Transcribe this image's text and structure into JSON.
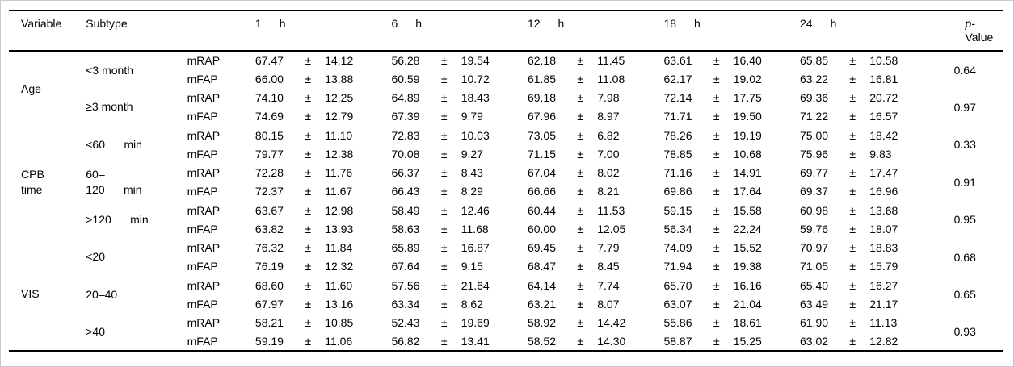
{
  "page": {
    "background": "#ffffff",
    "frame_border_color": "#c9c9c9",
    "rule_color": "#000000"
  },
  "table": {
    "headers": {
      "variable": "Variable",
      "subtype": "Subtype",
      "p_line1": "p-",
      "p_line2": "Value"
    },
    "time_headers": [
      {
        "num": "1",
        "unit": "h"
      },
      {
        "num": "6",
        "unit": "h"
      },
      {
        "num": "12",
        "unit": "h"
      },
      {
        "num": "18",
        "unit": "h"
      },
      {
        "num": "24",
        "unit": "h"
      }
    ],
    "plus_minus": "±",
    "sections": [
      {
        "variable": "Age",
        "groups": [
          {
            "subtype": "<3 month",
            "p": "0.64",
            "rows": [
              {
                "measure": "mRAP",
                "cells": [
                  [
                    "67.47",
                    "14.12"
                  ],
                  [
                    "56.28",
                    "19.54"
                  ],
                  [
                    "62.18",
                    "11.45"
                  ],
                  [
                    "63.61",
                    "16.40"
                  ],
                  [
                    "65.85",
                    "10.58"
                  ]
                ]
              },
              {
                "measure": "mFAP",
                "cells": [
                  [
                    "66.00",
                    "13.88"
                  ],
                  [
                    "60.59",
                    "10.72"
                  ],
                  [
                    "61.85",
                    "11.08"
                  ],
                  [
                    "62.17",
                    "19.02"
                  ],
                  [
                    "63.22",
                    "16.81"
                  ]
                ]
              }
            ]
          },
          {
            "subtype": "≥3 month",
            "p": "0.97",
            "rows": [
              {
                "measure": "mRAP",
                "cells": [
                  [
                    "74.10",
                    "12.25"
                  ],
                  [
                    "64.89",
                    "18.43"
                  ],
                  [
                    "69.18",
                    "7.98"
                  ],
                  [
                    "72.14",
                    "17.75"
                  ],
                  [
                    "69.36",
                    "20.72"
                  ]
                ]
              },
              {
                "measure": "mFAP",
                "cells": [
                  [
                    "74.69",
                    "12.79"
                  ],
                  [
                    "67.39",
                    "9.79"
                  ],
                  [
                    "67.96",
                    "8.97"
                  ],
                  [
                    "71.71",
                    "19.50"
                  ],
                  [
                    "71.22",
                    "16.57"
                  ]
                ]
              }
            ]
          }
        ]
      },
      {
        "variable": "CPB\ntime",
        "groups": [
          {
            "subtype": "<60      min",
            "p": "0.33",
            "rows": [
              {
                "measure": "mRAP",
                "cells": [
                  [
                    "80.15",
                    "11.10"
                  ],
                  [
                    "72.83",
                    "10.03"
                  ],
                  [
                    "73.05",
                    "6.82"
                  ],
                  [
                    "78.26",
                    "19.19"
                  ],
                  [
                    "75.00",
                    "18.42"
                  ]
                ]
              },
              {
                "measure": "mFAP",
                "cells": [
                  [
                    "79.77",
                    "12.38"
                  ],
                  [
                    "70.08",
                    "9.27"
                  ],
                  [
                    "71.15",
                    "7.00"
                  ],
                  [
                    "78.85",
                    "10.68"
                  ],
                  [
                    "75.96",
                    "9.83"
                  ]
                ]
              }
            ]
          },
          {
            "subtype": "60–\n120      min",
            "p": "0.91",
            "rows": [
              {
                "measure": "mRAP",
                "cells": [
                  [
                    "72.28",
                    "11.76"
                  ],
                  [
                    "66.37",
                    "8.43"
                  ],
                  [
                    "67.04",
                    "8.02"
                  ],
                  [
                    "71.16",
                    "14.91"
                  ],
                  [
                    "69.77",
                    "17.47"
                  ]
                ]
              },
              {
                "measure": "mFAP",
                "cells": [
                  [
                    "72.37",
                    "11.67"
                  ],
                  [
                    "66.43",
                    "8.29"
                  ],
                  [
                    "66.66",
                    "8.21"
                  ],
                  [
                    "69.86",
                    "17.64"
                  ],
                  [
                    "69.37",
                    "16.96"
                  ]
                ]
              }
            ]
          },
          {
            "subtype": ">120      min",
            "p": "0.95",
            "rows": [
              {
                "measure": "mRAP",
                "cells": [
                  [
                    "63.67",
                    "12.98"
                  ],
                  [
                    "58.49",
                    "12.46"
                  ],
                  [
                    "60.44",
                    "11.53"
                  ],
                  [
                    "59.15",
                    "15.58"
                  ],
                  [
                    "60.98",
                    "13.68"
                  ]
                ]
              },
              {
                "measure": "mFAP",
                "cells": [
                  [
                    "63.82",
                    "13.93"
                  ],
                  [
                    "58.63",
                    "11.68"
                  ],
                  [
                    "60.00",
                    "12.05"
                  ],
                  [
                    "56.34",
                    "22.24"
                  ],
                  [
                    "59.76",
                    "18.07"
                  ]
                ]
              }
            ]
          }
        ]
      },
      {
        "variable": "VIS",
        "groups": [
          {
            "subtype": "<20",
            "p": "0.68",
            "rows": [
              {
                "measure": "mRAP",
                "cells": [
                  [
                    "76.32",
                    "11.84"
                  ],
                  [
                    "65.89",
                    "16.87"
                  ],
                  [
                    "69.45",
                    "7.79"
                  ],
                  [
                    "74.09",
                    "15.52"
                  ],
                  [
                    "70.97",
                    "18.83"
                  ]
                ]
              },
              {
                "measure": "mFAP",
                "cells": [
                  [
                    "76.19",
                    "12.32"
                  ],
                  [
                    "67.64",
                    "9.15"
                  ],
                  [
                    "68.47",
                    "8.45"
                  ],
                  [
                    "71.94",
                    "19.38"
                  ],
                  [
                    "71.05",
                    "15.79"
                  ]
                ]
              }
            ]
          },
          {
            "subtype": "20–40",
            "p": "0.65",
            "rows": [
              {
                "measure": "mRAP",
                "cells": [
                  [
                    "68.60",
                    "11.60"
                  ],
                  [
                    "57.56",
                    "21.64"
                  ],
                  [
                    "64.14",
                    "7.74"
                  ],
                  [
                    "65.70",
                    "16.16"
                  ],
                  [
                    "65.40",
                    "16.27"
                  ]
                ]
              },
              {
                "measure": "mFAP",
                "cells": [
                  [
                    "67.97",
                    "13.16"
                  ],
                  [
                    "63.34",
                    "8.62"
                  ],
                  [
                    "63.21",
                    "8.07"
                  ],
                  [
                    "63.07",
                    "21.04"
                  ],
                  [
                    "63.49",
                    "21.17"
                  ]
                ]
              }
            ]
          },
          {
            "subtype": ">40",
            "p": "0.93",
            "rows": [
              {
                "measure": "mRAP",
                "cells": [
                  [
                    "58.21",
                    "10.85"
                  ],
                  [
                    "52.43",
                    "19.69"
                  ],
                  [
                    "58.92",
                    "14.42"
                  ],
                  [
                    "55.86",
                    "18.61"
                  ],
                  [
                    "61.90",
                    "11.13"
                  ]
                ]
              },
              {
                "measure": "mFAP",
                "cells": [
                  [
                    "59.19",
                    "11.06"
                  ],
                  [
                    "56.82",
                    "13.41"
                  ],
                  [
                    "58.52",
                    "14.30"
                  ],
                  [
                    "58.87",
                    "15.25"
                  ],
                  [
                    "63.02",
                    "12.82"
                  ]
                ]
              }
            ]
          }
        ]
      }
    ]
  }
}
